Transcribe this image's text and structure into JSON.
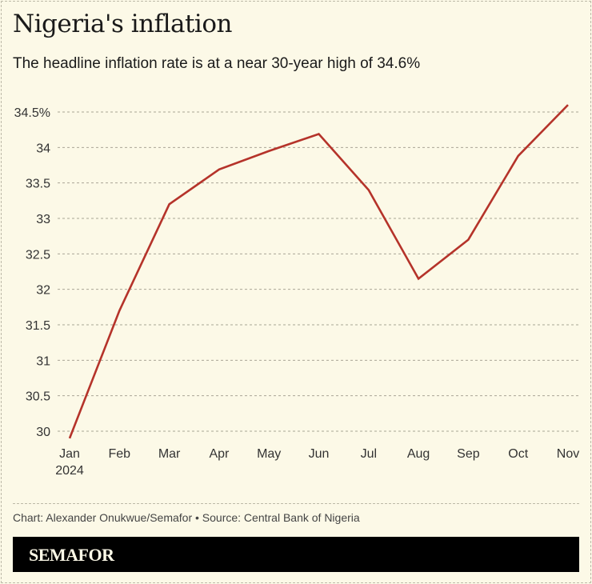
{
  "header": {
    "title": "Nigeria's inflation",
    "subtitle": "The headline inflation rate is at a near 30-year high of 34.6%"
  },
  "footer": {
    "credit": "Chart: Alexander Onukwue/Semafor • Source: Central Bank of Nigeria",
    "brand": "SEMAFOR"
  },
  "colors": {
    "background": "#fcf9e7",
    "line": "#b5332a",
    "grid": "#a9a696",
    "footer_bg": "#000000"
  },
  "chart_data": {
    "type": "line",
    "title": "Nigeria's inflation",
    "subtitle": "The headline inflation rate is at a near 30-year high of 34.6%",
    "xlabel": "",
    "ylabel": "",
    "categories": [
      "Jan",
      "Feb",
      "Mar",
      "Apr",
      "May",
      "Jun",
      "Jul",
      "Aug",
      "Sep",
      "Oct",
      "Nov"
    ],
    "x_tick_labels": [
      "Jan\n2024",
      "Feb",
      "Mar",
      "Apr",
      "May",
      "Jun",
      "Jul",
      "Aug",
      "Sep",
      "Oct",
      "Nov"
    ],
    "series": [
      {
        "name": "Headline inflation rate (%)",
        "values": [
          29.9,
          31.7,
          33.2,
          33.69,
          33.95,
          34.19,
          33.4,
          32.15,
          32.7,
          33.88,
          34.6
        ]
      }
    ],
    "y_ticks": [
      30,
      30.5,
      31,
      31.5,
      32,
      32.5,
      33,
      33.5,
      34,
      34.5
    ],
    "y_tick_labels": [
      "30",
      "30.5",
      "31",
      "31.5",
      "32",
      "32.5",
      "33",
      "33.5",
      "34",
      "34.5%"
    ],
    "ylim": [
      30,
      34.5
    ],
    "grid": true,
    "legend": "none"
  }
}
